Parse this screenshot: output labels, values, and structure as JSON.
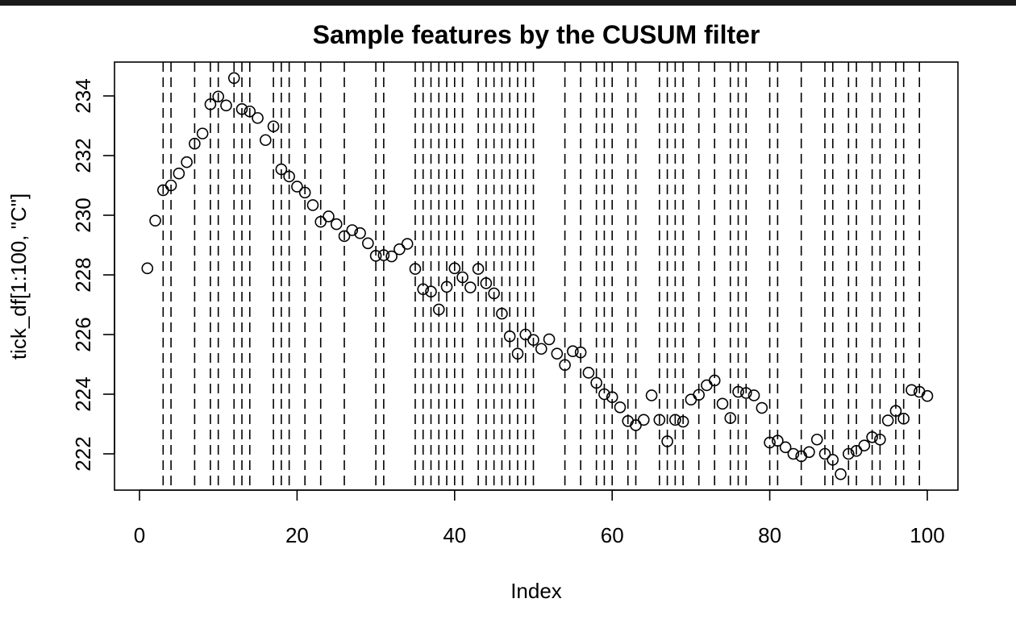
{
  "chart_data": {
    "type": "scatter",
    "title": "Sample features by the CUSUM filter",
    "xlabel": "Index",
    "ylabel": "tick_df[1:100, \"C\"]",
    "xlim": [
      0,
      100
    ],
    "ylim": [
      221,
      235
    ],
    "x_ticks": [
      0,
      20,
      40,
      60,
      80,
      100
    ],
    "y_ticks": [
      222,
      224,
      226,
      228,
      230,
      232,
      234
    ],
    "marker": "open-circle",
    "grid": false,
    "legend": "none",
    "x": [
      1,
      2,
      3,
      4,
      5,
      6,
      7,
      8,
      9,
      10,
      11,
      12,
      13,
      14,
      15,
      16,
      17,
      18,
      19,
      20,
      21,
      22,
      23,
      24,
      25,
      26,
      27,
      28,
      29,
      30,
      31,
      32,
      33,
      34,
      35,
      36,
      37,
      38,
      39,
      40,
      41,
      42,
      43,
      44,
      45,
      46,
      47,
      48,
      49,
      50,
      51,
      52,
      53,
      54,
      55,
      56,
      57,
      58,
      59,
      60,
      61,
      62,
      63,
      64,
      65,
      66,
      67,
      68,
      69,
      70,
      71,
      72,
      73,
      74,
      75,
      76,
      77,
      78,
      79,
      80,
      81,
      82,
      83,
      84,
      85,
      86,
      87,
      88,
      89,
      90,
      91,
      92,
      93,
      94,
      95,
      96,
      97,
      98,
      99,
      100
    ],
    "y": [
      228.22,
      229.82,
      230.84,
      231.0,
      231.4,
      231.78,
      232.4,
      232.74,
      233.72,
      233.98,
      233.68,
      234.6,
      233.56,
      233.48,
      233.26,
      232.52,
      232.98,
      231.54,
      231.3,
      230.96,
      230.76,
      230.34,
      229.78,
      229.96,
      229.7,
      229.3,
      229.5,
      229.4,
      229.06,
      228.64,
      228.66,
      228.62,
      228.86,
      229.04,
      228.2,
      227.52,
      227.44,
      226.84,
      227.6,
      228.22,
      227.92,
      227.58,
      228.2,
      227.72,
      227.38,
      226.7,
      225.94,
      225.36,
      226.0,
      225.82,
      225.52,
      225.84,
      225.36,
      224.98,
      225.44,
      225.4,
      224.72,
      224.38,
      224.0,
      223.9,
      223.56,
      223.1,
      222.96,
      223.14,
      223.96,
      223.14,
      222.42,
      223.14,
      223.08,
      223.82,
      223.98,
      224.3,
      224.46,
      223.68,
      223.2,
      224.08,
      224.04,
      223.96,
      223.54,
      222.38,
      222.44,
      222.22,
      222.0,
      221.92,
      222.06,
      222.48,
      222.0,
      221.8,
      221.32,
      222.0,
      222.1,
      222.28,
      222.56,
      222.48,
      223.12,
      223.44,
      223.18,
      224.14,
      224.08,
      223.94
    ],
    "cusum_events": [
      3,
      4,
      7,
      9,
      10,
      12,
      13,
      14,
      17,
      18,
      19,
      21,
      23,
      26,
      30,
      31,
      35,
      36,
      37,
      38,
      39,
      40,
      41,
      43,
      44,
      45,
      46,
      47,
      48,
      49,
      50,
      54,
      56,
      58,
      59,
      60,
      62,
      63,
      66,
      67,
      68,
      69,
      71,
      73,
      75,
      76,
      77,
      80,
      81,
      84,
      87,
      88,
      90,
      91,
      93,
      94,
      96,
      97,
      99
    ]
  }
}
